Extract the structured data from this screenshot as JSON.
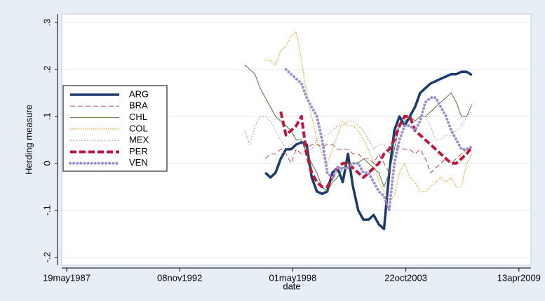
{
  "chart_data": {
    "type": "line",
    "x_label": "date",
    "y_label": "Herding measure",
    "x": [
      "1996-01-01",
      "1996-04-01",
      "1996-07-01",
      "1996-10-01",
      "1997-01-01",
      "1997-04-01",
      "1997-07-01",
      "1997-10-01",
      "1998-01-01",
      "1998-04-01",
      "1998-07-01",
      "1998-10-01",
      "1999-01-01",
      "1999-04-01",
      "1999-07-01",
      "1999-10-01",
      "2000-01-01",
      "2000-04-01",
      "2000-07-01",
      "2000-10-01",
      "2001-01-01",
      "2001-04-01",
      "2001-07-01",
      "2001-10-01",
      "2002-01-01",
      "2002-04-01",
      "2002-07-01",
      "2002-10-01",
      "2003-01-01",
      "2003-04-01",
      "2003-07-01",
      "2003-10-01",
      "2004-01-01",
      "2004-04-01",
      "2004-07-01",
      "2004-10-01",
      "2005-01-01",
      "2005-04-01",
      "2005-07-01",
      "2005-10-01",
      "2006-01-01",
      "2006-04-01",
      "2006-07-01",
      "2006-10-01",
      "2007-01-01"
    ],
    "series": [
      {
        "name": "ARG",
        "color": "#1a3a6e",
        "values": [
          null,
          null,
          null,
          null,
          -0.02,
          -0.03,
          -0.02,
          0.01,
          0.03,
          0.03,
          0.04,
          0.045,
          0.04,
          -0.03,
          -0.06,
          -0.065,
          -0.06,
          -0.02,
          -0.01,
          -0.04,
          0.02,
          -0.05,
          -0.1,
          -0.12,
          -0.12,
          -0.11,
          -0.13,
          -0.14,
          -0.02,
          0.07,
          0.1,
          0.08,
          0.1,
          0.12,
          0.15,
          0.16,
          0.17,
          0.175,
          0.18,
          0.185,
          0.19,
          0.19,
          0.195,
          0.195,
          0.188
        ]
      },
      {
        "name": "BRA",
        "color": "#b04a4a",
        "values": [
          null,
          null,
          null,
          null,
          0.01,
          0.02,
          0.02,
          0.03,
          0.02,
          0.0,
          0.03,
          0.02,
          0.03,
          0.04,
          0.04,
          0.035,
          0.04,
          0.04,
          0.03,
          0.03,
          0.03,
          0.02,
          0.02,
          0.01,
          0.01,
          0.0,
          0.02,
          0.0,
          -0.02,
          0.03,
          0.035,
          0.03,
          0.03,
          0.02,
          0.03,
          0.01,
          -0.02,
          -0.01,
          0.0,
          0.01,
          0.0,
          0.01,
          0.02,
          0.03,
          0.035
        ]
      },
      {
        "name": "CHL",
        "color": "#4e7a3a",
        "values": [
          0.21,
          0.2,
          0.19,
          0.16,
          0.14,
          0.12,
          0.1,
          0.09,
          0.08,
          0.07,
          0.05,
          0.05,
          0.02,
          0.0,
          -0.02,
          -0.05,
          -0.06,
          -0.04,
          -0.03,
          -0.01,
          0.0,
          0.0,
          0.0,
          0.01,
          0.0,
          -0.01,
          -0.02,
          -0.05,
          -0.02,
          0.03,
          0.08,
          0.09,
          0.1,
          0.09,
          0.1,
          0.1,
          0.11,
          0.12,
          0.13,
          0.14,
          0.15,
          0.13,
          0.1,
          0.1,
          0.125
        ]
      },
      {
        "name": "COL",
        "color": "#e8a030",
        "values": [
          null,
          null,
          null,
          null,
          0.22,
          0.22,
          0.21,
          0.24,
          0.25,
          0.27,
          0.28,
          0.22,
          0.15,
          0.1,
          0.05,
          0.02,
          0.0,
          0.03,
          0.06,
          0.09,
          0.08,
          0.08,
          0.07,
          0.05,
          0.03,
          0.0,
          -0.04,
          -0.06,
          -0.08,
          -0.07,
          -0.02,
          0.0,
          -0.03,
          -0.04,
          -0.06,
          -0.06,
          -0.05,
          -0.04,
          -0.03,
          -0.04,
          -0.03,
          -0.05,
          -0.05,
          0.0,
          0.02
        ]
      },
      {
        "name": "MEX",
        "color": "#8a8a8a",
        "values": [
          0.07,
          0.04,
          0.08,
          0.1,
          0.1,
          0.09,
          0.07,
          0.05,
          0.03,
          0.04,
          0.05,
          0.04,
          0.03,
          0.03,
          0.05,
          0.06,
          0.06,
          0.07,
          0.08,
          0.08,
          0.09,
          0.09,
          0.08,
          0.07,
          0.05,
          0.03,
          0.04,
          0.04,
          0.02,
          0.05,
          0.09,
          0.08,
          0.08,
          0.09,
          0.1,
          0.1,
          0.08,
          0.05,
          0.05,
          0.06,
          0.06,
          0.07,
          0.08,
          0.1,
          0.11
        ]
      },
      {
        "name": "PER",
        "color": "#c0143c",
        "values": [
          null,
          null,
          null,
          null,
          null,
          null,
          null,
          0.11,
          0.06,
          0.07,
          0.08,
          0.1,
          0.02,
          -0.02,
          -0.04,
          -0.05,
          -0.05,
          -0.03,
          -0.01,
          0.0,
          0.0,
          -0.01,
          -0.02,
          -0.03,
          -0.02,
          -0.01,
          0.0,
          0.02,
          0.03,
          0.05,
          0.08,
          0.1,
          0.1,
          0.07,
          0.06,
          0.05,
          0.04,
          0.03,
          0.02,
          0.01,
          0.0,
          0.0,
          0.01,
          0.02,
          0.035
        ]
      },
      {
        "name": "VEN",
        "color": "#9b8fd4",
        "values": [
          null,
          null,
          null,
          null,
          null,
          null,
          null,
          null,
          0.2,
          0.19,
          0.18,
          0.17,
          0.14,
          0.12,
          0.1,
          0.05,
          -0.02,
          -0.03,
          -0.01,
          -0.01,
          -0.01,
          0.0,
          0.0,
          -0.02,
          -0.02,
          -0.04,
          -0.06,
          -0.07,
          -0.1,
          0.0,
          0.05,
          0.08,
          0.08,
          0.07,
          0.09,
          0.13,
          0.14,
          0.14,
          0.12,
          0.1,
          0.07,
          0.05,
          0.03,
          0.03,
          0.035
        ]
      }
    ],
    "xlim": [
      "1987-02-21",
      "2009-11-12"
    ],
    "xticks": [
      {
        "value": "1987-05-19",
        "label": "19may1987"
      },
      {
        "value": "1992-11-08",
        "label": "08nov1992"
      },
      {
        "value": "1998-05-01",
        "label": "01may1998"
      },
      {
        "value": "2003-10-22",
        "label": "22oct2003"
      },
      {
        "value": "2009-04-13",
        "label": "13apr2009"
      }
    ],
    "ylim": [
      -0.217,
      0.318
    ],
    "yticks": [
      {
        "value": -0.2,
        "label": "-.2"
      },
      {
        "value": -0.1,
        "label": "-.1"
      },
      0,
      {
        "value": 0.1,
        "label": ".1"
      },
      {
        "value": 0.2,
        "label": ".2"
      },
      {
        "value": 0.3,
        "label": ".3"
      }
    ],
    "grid": true,
    "legend_position": "left"
  }
}
